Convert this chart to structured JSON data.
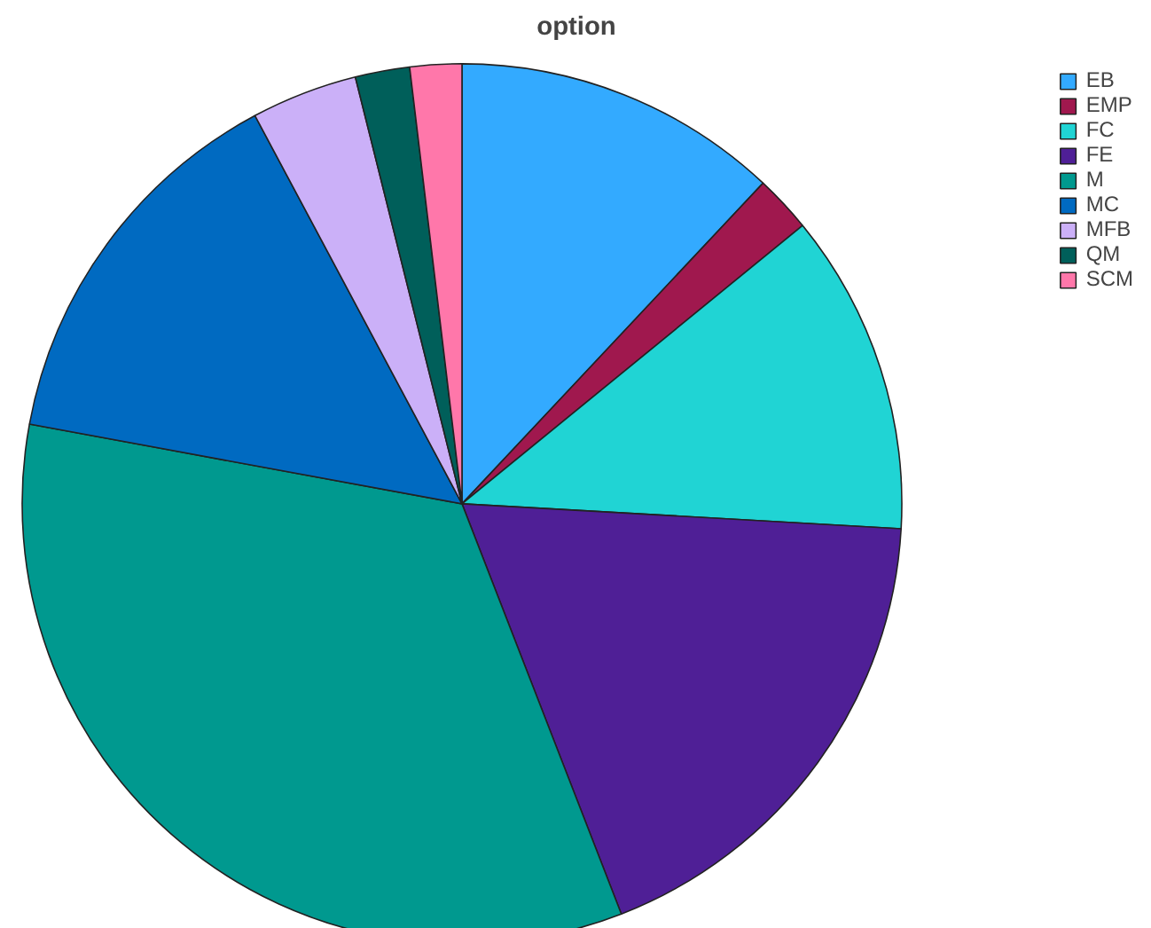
{
  "chart_data": {
    "type": "pie",
    "title": "option",
    "categories": [
      "EB",
      "EMP",
      "FC",
      "FE",
      "M",
      "MC",
      "MFB",
      "QM",
      "SCM"
    ],
    "values": [
      12.0,
      2.1,
      11.8,
      18.2,
      33.8,
      14.3,
      3.9,
      2.0,
      1.9
    ],
    "colors": [
      "#33aaff",
      "#a0184e",
      "#20d4d4",
      "#4f1f96",
      "#00998f",
      "#006ac1",
      "#cbb0f8",
      "#005f5a",
      "#ff77aa"
    ],
    "legend": "top right"
  }
}
